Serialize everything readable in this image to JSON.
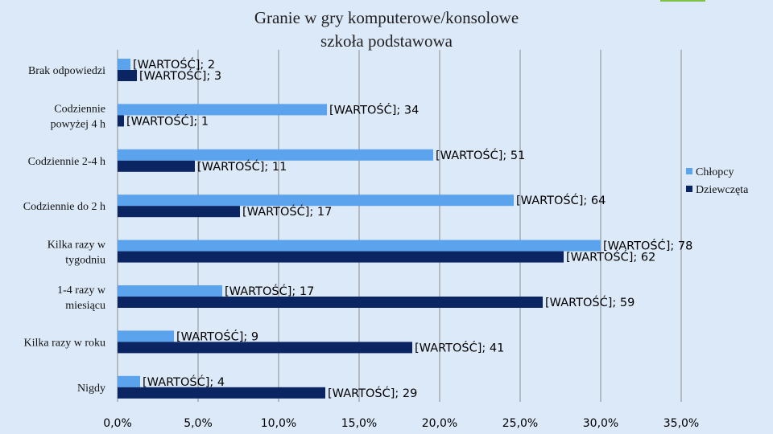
{
  "chart_data": {
    "type": "bar",
    "orientation": "horizontal",
    "title": "Granie w gry komputerowe/konsolowe",
    "subtitle": "szkoła podstawowa",
    "categories": [
      "Brak odpowiedzi",
      "Codziennie powyżej 4 h",
      "Codziennie 2-4 h",
      "Codziennie do 2 h",
      "Kilka razy w tygodniu",
      "1-4 razy w miesiącu",
      "Kilka razy w roku",
      "Nigdy"
    ],
    "category_lines": [
      [
        "Brak odpowiedzi"
      ],
      [
        "Codziennie",
        "powyżej 4 h"
      ],
      [
        "Codziennie 2-4 h"
      ],
      [
        "Codziennie do 2 h"
      ],
      [
        "Kilka razy w",
        "tygodniu"
      ],
      [
        "1-4 razy w",
        "miesiącu"
      ],
      [
        "Kilka razy w roku"
      ],
      [
        "Nigdy"
      ]
    ],
    "series": [
      {
        "name": "Chłopcy",
        "color": "#5ba3ec",
        "values": [
          0.8,
          13.0,
          19.6,
          24.6,
          30.0,
          6.5,
          3.5,
          1.4
        ],
        "labels": [
          "[WARTOŚĆ]; 2",
          "[WARTOŚĆ]; 34",
          "[WARTOŚĆ]; 51",
          "[WARTOŚĆ]; 64",
          "[WARTOŚĆ]; 78",
          "[WARTOŚĆ]; 17",
          "[WARTOŚĆ]; 9",
          "[WARTOŚĆ]; 4"
        ]
      },
      {
        "name": "Dziewczęta",
        "color": "#0b2563",
        "values": [
          1.2,
          0.4,
          4.8,
          7.6,
          27.7,
          26.4,
          18.3,
          12.9
        ],
        "labels": [
          "[WARTOŚĆ]; 3",
          "[WARTOŚĆ]; 1",
          "[WARTOŚĆ]; 11",
          "[WARTOŚĆ]; 17",
          "[WARTOŚĆ]; 62",
          "[WARTOŚĆ]; 59",
          "[WARTOŚĆ]; 41",
          "[WARTOŚĆ]; 29"
        ]
      }
    ],
    "xlim": [
      0,
      35
    ],
    "xticks": [
      0,
      5,
      10,
      15,
      20,
      25,
      30,
      35
    ],
    "xtick_labels": [
      "0,0%",
      "5,0%",
      "10,0%",
      "15,0%",
      "20,0%",
      "25,0%",
      "30,0%",
      "35,0%"
    ],
    "grid": true,
    "legend": "right"
  },
  "colors": {
    "background": "#dce9f9",
    "gridline": "#8a8a8a",
    "accent": "#7fc24a"
  }
}
